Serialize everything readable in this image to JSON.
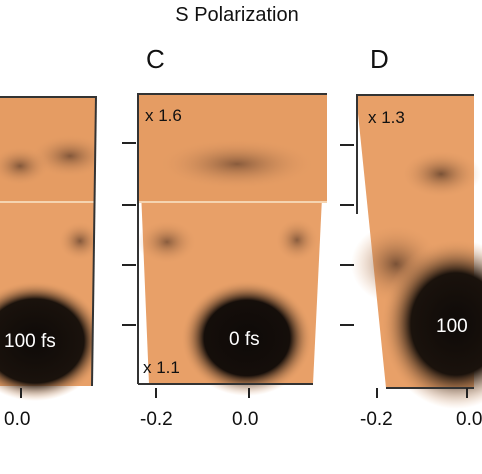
{
  "figure": {
    "title": "S Polarization",
    "panels": [
      {
        "id": "B-partial",
        "letter": "",
        "lower_multiplier": "",
        "upper_multiplier": "",
        "delay_label": "100 fs",
        "x_ticks": [
          "0.0"
        ]
      },
      {
        "id": "C",
        "letter": "C",
        "upper_multiplier": "x 1.6",
        "lower_multiplier": "x 1.1",
        "delay_label": "0 fs",
        "x_ticks": [
          "-0.2",
          "0.0"
        ]
      },
      {
        "id": "D",
        "letter": "D",
        "upper_multiplier": "x 1.3",
        "lower_multiplier": "",
        "delay_label": "100",
        "x_ticks": [
          "-0.2",
          "0.0"
        ]
      }
    ],
    "colors": {
      "background_orange": "#e8a068",
      "light_orange": "#f2c79a",
      "dark_spot": "#0e0a08"
    }
  }
}
